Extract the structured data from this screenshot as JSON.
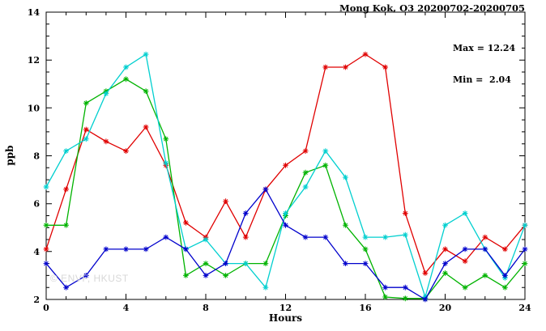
{
  "header": {
    "title": "Mong Kok, O3 20200702-20200705"
  },
  "annotations": {
    "max_label": "Max = 12.24",
    "min_label": "Min =  2.04"
  },
  "watermark": "© ENVF, HKUST",
  "chart_data": {
    "type": "line",
    "title": "Mong Kok, O3 20200702-20200705",
    "xlabel": "Hours",
    "ylabel": "ppb",
    "xlim": [
      0,
      24
    ],
    "ylim": [
      2,
      14
    ],
    "xticks": [
      0,
      4,
      8,
      12,
      16,
      20,
      24
    ],
    "yticks": [
      2,
      4,
      6,
      8,
      10,
      12,
      14
    ],
    "x_minor_step": 1,
    "y_minor_step": 0.5,
    "grid": false,
    "legend": "none",
    "marker": "asterisk",
    "max": 12.24,
    "min": 2.04,
    "x": [
      0,
      1,
      2,
      3,
      4,
      5,
      6,
      7,
      8,
      9,
      10,
      11,
      12,
      13,
      14,
      15,
      16,
      17,
      18,
      19,
      20,
      21,
      22,
      23,
      24
    ],
    "series": [
      {
        "name": "red",
        "color": "#e00000",
        "values": [
          4.1,
          6.6,
          9.1,
          8.6,
          8.2,
          9.2,
          7.6,
          5.2,
          4.6,
          6.1,
          4.6,
          6.6,
          7.6,
          8.2,
          11.7,
          11.7,
          12.24,
          11.7,
          5.6,
          3.1,
          4.1,
          3.6,
          4.6,
          4.1,
          5.1
        ]
      },
      {
        "name": "green",
        "color": "#00b300",
        "values": [
          5.1,
          5.1,
          10.2,
          10.7,
          11.2,
          10.7,
          8.7,
          3.0,
          3.5,
          3.0,
          3.5,
          3.5,
          5.5,
          7.3,
          7.6,
          5.1,
          4.1,
          2.1,
          2.04,
          2.04,
          3.1,
          2.5,
          3.0,
          2.5,
          3.5
        ]
      },
      {
        "name": "cyan",
        "color": "#00cfcf",
        "values": [
          6.7,
          8.2,
          8.7,
          10.6,
          11.7,
          12.24,
          7.7,
          4.1,
          4.5,
          3.5,
          3.5,
          2.5,
          5.6,
          6.7,
          8.2,
          7.1,
          4.6,
          4.6,
          4.7,
          2.1,
          5.1,
          5.6,
          4.1,
          2.9,
          5.1
        ]
      },
      {
        "name": "blue",
        "color": "#0000cc",
        "values": [
          3.5,
          2.5,
          3.0,
          4.1,
          4.1,
          4.1,
          4.6,
          4.1,
          3.0,
          3.5,
          5.6,
          6.6,
          5.1,
          4.6,
          4.6,
          3.5,
          3.5,
          2.5,
          2.5,
          2.0,
          3.5,
          4.1,
          4.1,
          3.0,
          4.1
        ]
      }
    ]
  }
}
